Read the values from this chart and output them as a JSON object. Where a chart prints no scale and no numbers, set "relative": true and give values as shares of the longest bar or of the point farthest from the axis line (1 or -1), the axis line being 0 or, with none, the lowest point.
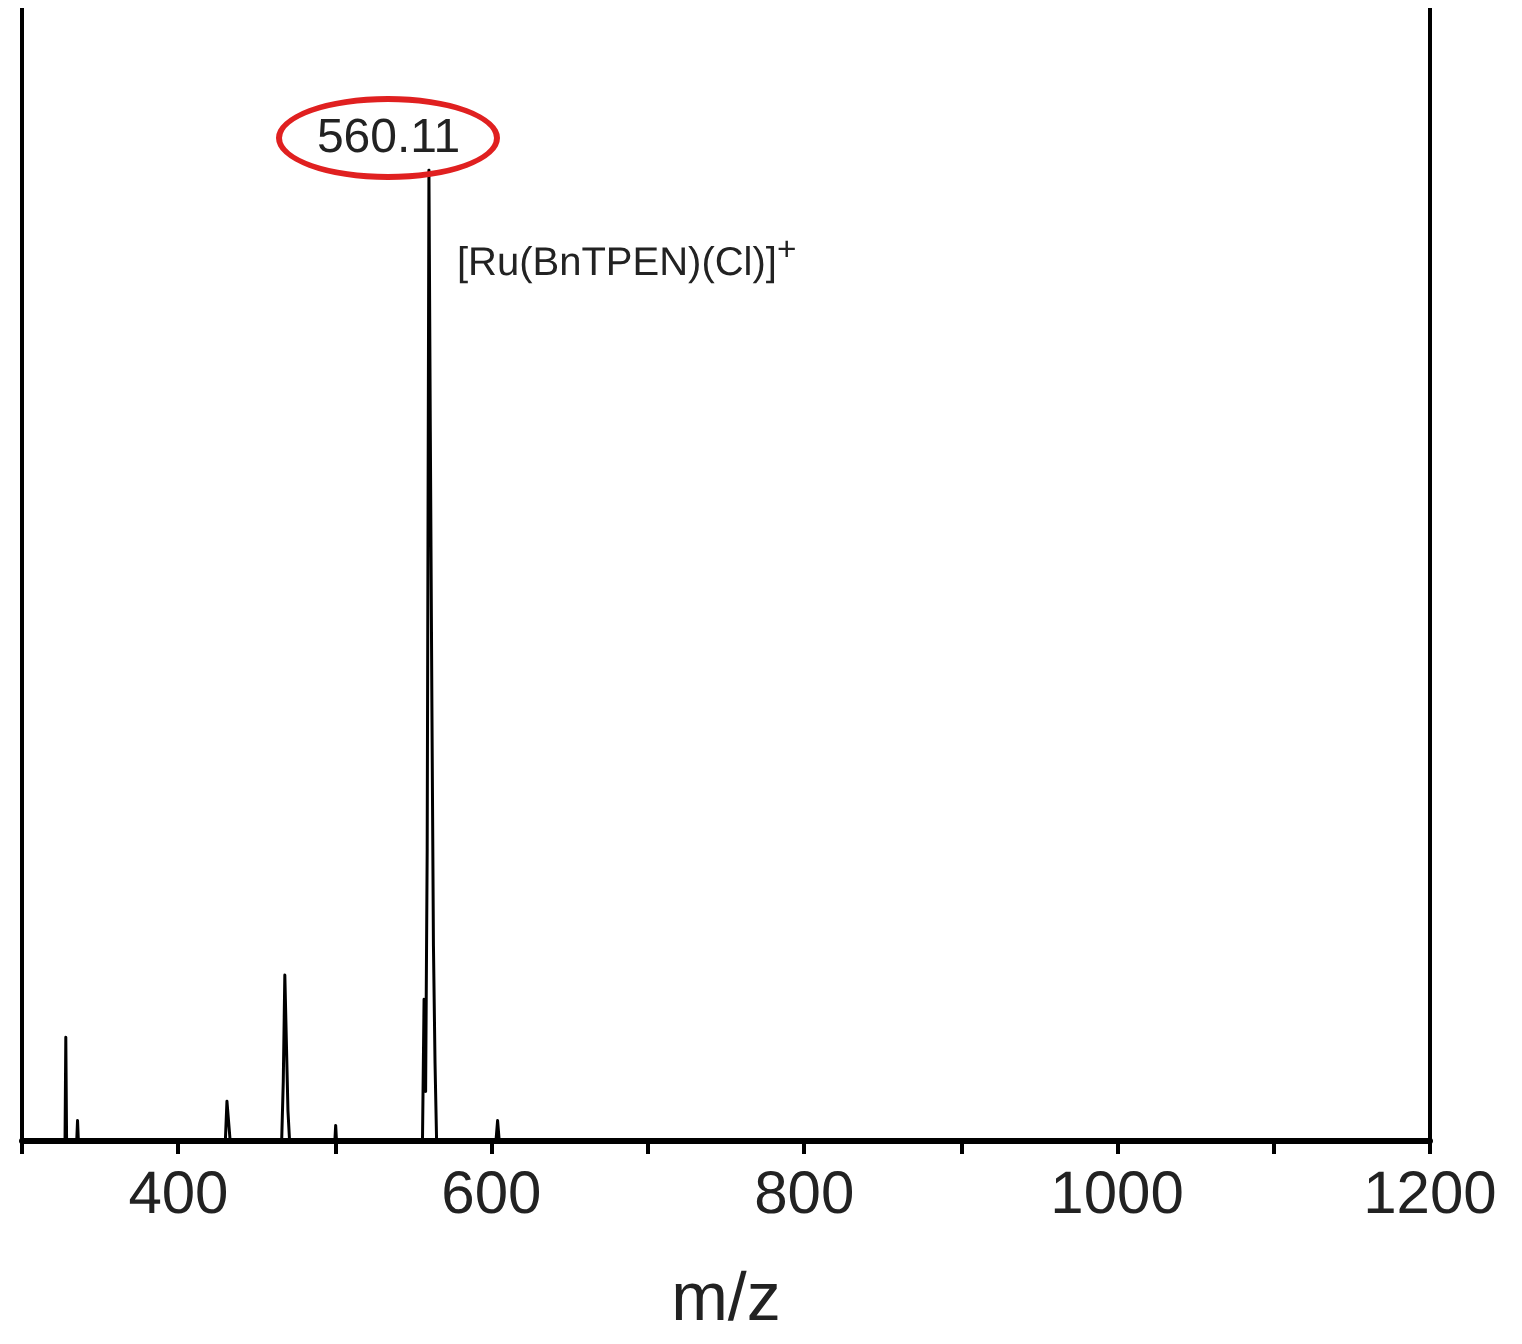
{
  "chart_data": {
    "type": "line",
    "xlabel": "m/z",
    "relative": true,
    "color": "#000000",
    "marker": "none",
    "line_style": "solid",
    "grid": false,
    "tick_labels": "x",
    "xlim": [
      300,
      1200
    ],
    "xticks": [
      {
        "value": 300,
        "label": null
      },
      400,
      {
        "value": 500,
        "label": null
      },
      600,
      {
        "value": 700,
        "label": null
      },
      800,
      {
        "value": 900,
        "label": null
      },
      1000,
      {
        "value": 1100,
        "label": null
      },
      1200
    ],
    "x": [
      300,
      327.5,
      328,
      328.5,
      335,
      335.5,
      336,
      430,
      431,
      432,
      433,
      466,
      467,
      468,
      469,
      470,
      471,
      500,
      500.5,
      501,
      556,
      557,
      558,
      559,
      560.11,
      561,
      562,
      563,
      564,
      565,
      603,
      604,
      605,
      1200
    ],
    "values": [
      0,
      0,
      0.106,
      0,
      0,
      0.02,
      0,
      0,
      0.04,
      0.02,
      0,
      0,
      0.06,
      0.17,
      0.1,
      0.03,
      0,
      0,
      0.015,
      0,
      0,
      0.145,
      0.05,
      0.3,
      1,
      0.73,
      0.45,
      0.2,
      0.08,
      0,
      0,
      0.02,
      0,
      0
    ],
    "annotations": [
      {
        "text": "560.11",
        "x": 560.11,
        "y": 1
      },
      {
        "text": "[Ru(BnTPEN)(Cl)]$^{+}$",
        "x": 560.11,
        "y": 1
      }
    ]
  }
}
